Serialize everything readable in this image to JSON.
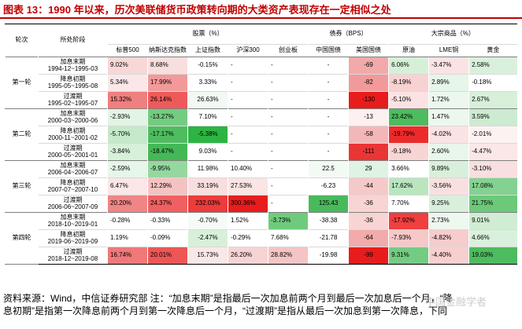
{
  "title": "图表 13：1990 年以来，历次美联储货币政策转向期的大类资产表现存在一定相似之处",
  "header": {
    "round_label": "轮次",
    "phase_label": "所处阶段",
    "groups": [
      {
        "label": "股票（%）",
        "span": 5
      },
      {
        "label": "债券（BPS）",
        "span": 2
      },
      {
        "label": "大宗商品（%）",
        "span": 3
      }
    ],
    "columns": [
      "标普500",
      "纳斯达克指数",
      "上证指数",
      "沪深300",
      "创业板",
      "中国国债",
      "美国国债",
      "原油",
      "LME铜",
      "黄金"
    ]
  },
  "rounds": [
    {
      "label": "第一轮",
      "rows": [
        {
          "phase": "加息末期",
          "range": "1994-12~1995-03",
          "values": [
            "9.02%",
            "8.68%",
            "-0.15%",
            "-",
            "-",
            "-",
            "-69",
            "6.06%",
            "-3.47%",
            "2.58%"
          ],
          "colors": [
            "#f8d7d7",
            "#f9dede",
            "#ffffff",
            "#ffffff",
            "#ffffff",
            "#ffffff",
            "#f2a9a9",
            "#d6f0d8",
            "#fbe3e3",
            "#d9f1dc"
          ]
        },
        {
          "phase": "降息初期",
          "range": "1995-05~1995-08",
          "values": [
            "5.34%",
            "17.99%",
            "3.33%",
            "-",
            "-",
            "-",
            "-82",
            "-8.19%",
            "2.89%",
            "-0.18%"
          ],
          "colors": [
            "#fbe7e7",
            "#f29a9a",
            "#ffffff",
            "#ffffff",
            "#ffffff",
            "#ffffff",
            "#f29a9a",
            "#f7d2d2",
            "#e6f6e8",
            "#ffffff"
          ]
        },
        {
          "phase": "过渡期",
          "range": "1995-02~1995-07",
          "values": [
            "15.32%",
            "26.14%",
            "26.63%",
            "-",
            "-",
            "-",
            "-130",
            "-5.10%",
            "1.72%",
            "2.67%"
          ],
          "colors": [
            "#f07f7f",
            "#ee5a5a",
            "#f2f8f2",
            "#ffffff",
            "#ffffff",
            "#ffffff",
            "#e81c1c",
            "#fbe3e3",
            "#ecf8ee",
            "#d8f0da"
          ]
        }
      ]
    },
    {
      "label": "第二轮",
      "rows": [
        {
          "phase": "加息末期",
          "range": "2000-03~2000-06",
          "values": [
            "-2.93%",
            "-13.27%",
            "7.10%",
            "-",
            "-",
            "-",
            "-13",
            "23.42%",
            "1.47%",
            "3.59%"
          ],
          "colors": [
            "#e2f4e4",
            "#73cc80",
            "#ffffff",
            "#ffffff",
            "#ffffff",
            "#ffffff",
            "#fdf0f0",
            "#4dbc5e",
            "#ecf8ee",
            "#cdebd1"
          ]
        },
        {
          "phase": "降息初期",
          "range": "2000-11~2001-02",
          "values": [
            "-5.70%",
            "-17.17%",
            "-5.38%",
            "-",
            "-",
            "-",
            "-58",
            "-19.79%",
            "-4.02%",
            "-2.01%"
          ],
          "colors": [
            "#c5e9ca",
            "#4fbc60",
            "#2db443",
            "#ffffff",
            "#ffffff",
            "#ffffff",
            "#f4b7b7",
            "#ee2b2b",
            "#fbe3e3",
            "#fdf2f2"
          ]
        },
        {
          "phase": "过渡期",
          "range": "2000-05~2001-01",
          "values": [
            "-3.84%",
            "-18.47%",
            "9.03%",
            "-",
            "-",
            "-",
            "-111",
            "-9.18%",
            "2.60%",
            "-4.47%"
          ],
          "colors": [
            "#d7f0da",
            "#44b856",
            "#ffffff",
            "#ffffff",
            "#ffffff",
            "#ffffff",
            "#ea3535",
            "#f8d5d5",
            "#e8f7ea",
            "#fbe7e7"
          ]
        }
      ]
    },
    {
      "label": "第三轮",
      "rows": [
        {
          "phase": "加息末期",
          "range": "2006-04~2006-07",
          "values": [
            "-2.59%",
            "-9.95%",
            "11.98%",
            "10.40%",
            "-",
            "22.5",
            "29",
            "3.66%",
            "9.89%",
            "-3.10%"
          ],
          "colors": [
            "#e6f6e8",
            "#95d89f",
            "#ffffff",
            "#ffffff",
            "#ffffff",
            "#f3faf4",
            "#dff3e2",
            "#ffffff",
            "#d8f0db",
            "#f9dfdf"
          ]
        },
        {
          "phase": "降息初期",
          "range": "2007-07~2007-10",
          "values": [
            "6.47%",
            "12.29%",
            "33.19%",
            "27.53%",
            "-",
            "-6.23",
            "-44",
            "17.62%",
            "-3.56%",
            "17.08%"
          ],
          "colors": [
            "#fbe7e7",
            "#f5c2c2",
            "#f9dede",
            "#fae4e4",
            "#ffffff",
            "#ffffff",
            "#f6c9c9",
            "#b9e5bf",
            "#f9e0e0",
            "#84d291"
          ]
        },
        {
          "phase": "过渡期",
          "range": "2006-06~2007-09",
          "values": [
            "20.20%",
            "24.37%",
            "232.03%",
            "300.36%",
            "-",
            "125.43",
            "-36",
            "7.70%",
            "9.25%",
            "21.75%"
          ],
          "colors": [
            "#f08585",
            "#f06060",
            "#ee3b3b",
            "#e81c1c",
            "#ffffff",
            "#49ba5b",
            "#f8d4d4",
            "#ffffff",
            "#d8f0db",
            "#6cc97a"
          ]
        }
      ]
    },
    {
      "label": "第四轮",
      "rows": [
        {
          "phase": "加息末期",
          "range": "2018-10~2019-01",
          "values": [
            "-0.28%",
            "-0.33%",
            "-0.70%",
            "1.52%",
            "-3.73%",
            "-38.38",
            "-36",
            "-17.92%",
            "2.73%",
            "9.01%"
          ],
          "colors": [
            "#ffffff",
            "#ffffff",
            "#f6fbf7",
            "#ffffff",
            "#6fcb7c",
            "#ffffff",
            "#f8d4d4",
            "#ef3f3f",
            "#edf8ef",
            "#d0ecd3"
          ]
        },
        {
          "phase": "降息初期",
          "range": "2019-06~2019-09",
          "values": [
            "1.19%",
            "-0.09%",
            "-2.47%",
            "-0.29%",
            "7.68%",
            "-21.78",
            "-64",
            "-7.93%",
            "-4.82%",
            "4.66%"
          ],
          "colors": [
            "#ffffff",
            "#ffffff",
            "#d8f0da",
            "#ffffff",
            "#ffffff",
            "#ffffff",
            "#f2abab",
            "#f6c8c8",
            "#f6cccc",
            "#d9f1dc"
          ]
        },
        {
          "phase": "过渡期",
          "range": "2018-12~2019-08",
          "values": [
            "16.74%",
            "20.01%",
            "15.73%",
            "26.20%",
            "28.82%",
            "-19.98",
            "-99",
            "9.31%",
            "-4.40%",
            "19.03%"
          ],
          "colors": [
            "#f07878",
            "#ee5656",
            "#fae7e7",
            "#f7d3d3",
            "#f5c4c4",
            "#ffffff",
            "#e81c1c",
            "#74cc82",
            "#f7cfcf",
            "#4dbc5e"
          ]
        }
      ]
    }
  ],
  "footer": {
    "line1": "资料来源：Wind，中信证券研究部 注：“加息末期”是指最后一次加息前两个月到最后一次加息后一个月，“降",
    "line2": "息初期”是指第一次降息前两个月到第一次降息后一个月，“过渡期”是指从最后一次加息到第一次降息，下同"
  },
  "watermark": "中国金融学者"
}
